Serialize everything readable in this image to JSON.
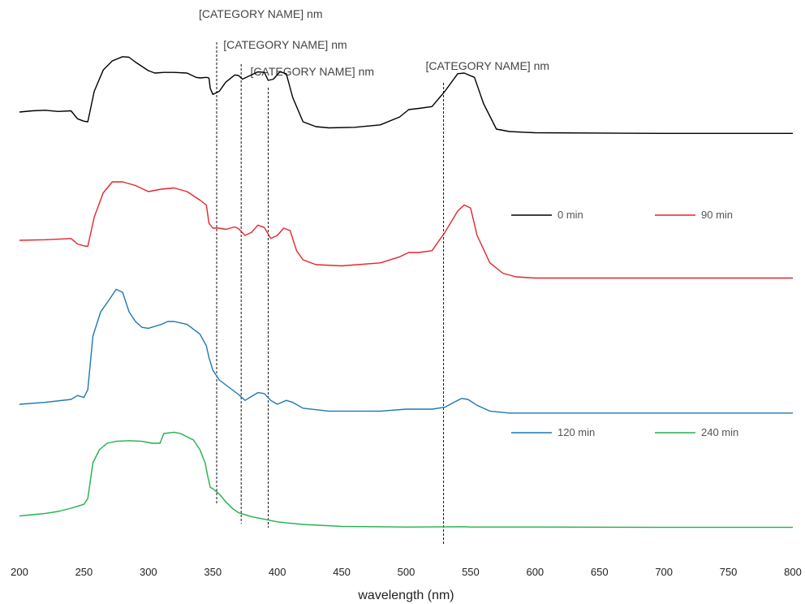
{
  "chart_data": {
    "type": "line",
    "title": "",
    "xlabel": "wavelength (nm)",
    "ylabel": "",
    "xlim": [
      200,
      800
    ],
    "x_ticks": [
      200,
      250,
      300,
      350,
      400,
      450,
      500,
      550,
      600,
      650,
      700,
      750,
      800
    ],
    "grid": false,
    "y_axis_shown": false,
    "series": [
      {
        "name": "0 min",
        "color": "#000000",
        "x": [
          200,
          210,
          220,
          230,
          240,
          245,
          250,
          253,
          258,
          265,
          272,
          280,
          285,
          290,
          300,
          305,
          312,
          320,
          330,
          337,
          340,
          345,
          347,
          348,
          350,
          355,
          360,
          367,
          370,
          373,
          378,
          385,
          390,
          393,
          397,
          402,
          407,
          412,
          420,
          430,
          440,
          460,
          480,
          495,
          502,
          510,
          520,
          530,
          540,
          545,
          553,
          560,
          570,
          580,
          590,
          600,
          700,
          800
        ],
        "y": [
          0.96,
          0.98,
          0.99,
          0.97,
          0.98,
          0.85,
          0.81,
          0.8,
          1.3,
          1.65,
          1.8,
          1.87,
          1.86,
          1.78,
          1.64,
          1.6,
          1.61,
          1.61,
          1.6,
          1.53,
          1.52,
          1.53,
          1.52,
          1.35,
          1.25,
          1.3,
          1.45,
          1.57,
          1.56,
          1.5,
          1.55,
          1.62,
          1.61,
          1.48,
          1.5,
          1.62,
          1.59,
          1.2,
          0.8,
          0.72,
          0.7,
          0.71,
          0.75,
          0.88,
          1.0,
          1.02,
          1.05,
          1.3,
          1.59,
          1.6,
          1.53,
          1.1,
          0.68,
          0.64,
          0.63,
          0.62,
          0.61,
          0.61
        ]
      },
      {
        "name": "90 min",
        "color": "#e3242b",
        "x": [
          200,
          220,
          240,
          245,
          250,
          253,
          258,
          265,
          272,
          280,
          290,
          300,
          310,
          320,
          330,
          340,
          345,
          347,
          350,
          355,
          360,
          367,
          370,
          375,
          380,
          385,
          390,
          395,
          400,
          405,
          410,
          415,
          420,
          430,
          450,
          480,
          495,
          502,
          510,
          520,
          525,
          530,
          540,
          545,
          550,
          555,
          565,
          575,
          585,
          600,
          700,
          800
        ],
        "y": [
          0.72,
          0.73,
          0.75,
          0.66,
          0.63,
          0.62,
          1.1,
          1.5,
          1.68,
          1.68,
          1.62,
          1.52,
          1.56,
          1.58,
          1.52,
          1.38,
          1.3,
          1.0,
          0.92,
          0.92,
          0.9,
          0.94,
          0.91,
          0.8,
          0.85,
          0.97,
          0.93,
          0.75,
          0.8,
          0.92,
          0.88,
          0.55,
          0.4,
          0.32,
          0.3,
          0.35,
          0.45,
          0.52,
          0.52,
          0.55,
          0.7,
          0.85,
          1.2,
          1.3,
          1.25,
          0.8,
          0.35,
          0.18,
          0.12,
          0.1,
          0.1,
          0.1
        ]
      },
      {
        "name": "120 min",
        "color": "#1f77b4",
        "x": [
          200,
          220,
          240,
          245,
          250,
          253,
          257,
          263,
          270,
          275,
          280,
          285,
          290,
          295,
          300,
          305,
          310,
          315,
          320,
          330,
          340,
          345,
          347,
          350,
          355,
          360,
          370,
          375,
          380,
          385,
          390,
          395,
          400,
          407,
          412,
          420,
          440,
          480,
          500,
          520,
          530,
          537,
          543,
          548,
          555,
          565,
          580,
          600,
          700,
          800
        ],
        "y": [
          0.1,
          0.12,
          0.15,
          0.19,
          0.17,
          0.25,
          0.8,
          1.05,
          1.18,
          1.28,
          1.25,
          1.05,
          0.95,
          0.89,
          0.88,
          0.9,
          0.92,
          0.95,
          0.95,
          0.92,
          0.82,
          0.7,
          0.58,
          0.45,
          0.35,
          0.3,
          0.2,
          0.14,
          0.18,
          0.22,
          0.21,
          0.14,
          0.1,
          0.14,
          0.12,
          0.06,
          0.03,
          0.03,
          0.05,
          0.05,
          0.07,
          0.12,
          0.16,
          0.15,
          0.09,
          0.03,
          0.01,
          0.01,
          0.01,
          0.01
        ]
      },
      {
        "name": "240 min",
        "color": "#21b04b",
        "x": [
          200,
          210,
          220,
          230,
          240,
          245,
          250,
          253,
          257,
          262,
          268,
          275,
          285,
          295,
          303,
          309,
          312,
          320,
          325,
          330,
          335,
          340,
          344,
          346,
          348,
          350,
          355,
          360,
          365,
          370,
          380,
          390,
          400,
          410,
          420,
          450,
          500,
          545,
          550,
          600,
          700,
          800
        ],
        "y": [
          0.18,
          0.2,
          0.22,
          0.25,
          0.3,
          0.33,
          0.36,
          0.45,
          1.0,
          1.2,
          1.3,
          1.33,
          1.34,
          1.33,
          1.3,
          1.3,
          1.45,
          1.47,
          1.45,
          1.4,
          1.35,
          1.2,
          1.0,
          0.8,
          0.62,
          0.6,
          0.52,
          0.4,
          0.3,
          0.23,
          0.17,
          0.13,
          0.09,
          0.07,
          0.05,
          0.02,
          0.01,
          0.015,
          0.01,
          0.01,
          0.005,
          0.005
        ]
      }
    ],
    "annotations": [
      {
        "x": 353,
        "text": "[CATEGORY NAME] nm"
      },
      {
        "x": 372,
        "text": "[CATEGORY NAME] nm"
      },
      {
        "x": 393,
        "text": "[CATEGORY NAME] nm"
      },
      {
        "x": 529,
        "text": "[CATEGORY NAME] nm"
      }
    ],
    "legend": {
      "placement": "right, two rows",
      "rows": [
        [
          "0 min",
          "90 min"
        ],
        [
          "120 min",
          "240 min"
        ]
      ]
    }
  }
}
